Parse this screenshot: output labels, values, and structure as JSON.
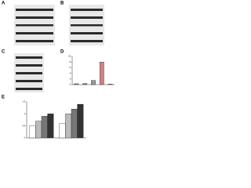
{
  "panel_labels": [
    "A",
    "B",
    "C",
    "D",
    "E"
  ],
  "chart_data": [
    {
      "type": "bar",
      "categories": [
        null,
        null,
        null,
        null,
        null
      ],
      "values": [
        0.3,
        0.4,
        1.5,
        8,
        0.2
      ],
      "colors": [
        "#888888",
        "#888888",
        "#999999",
        "#d08080",
        "#888888"
      ],
      "ylim": [
        0,
        10
      ],
      "yticks": [
        0,
        2,
        4,
        6,
        8,
        10
      ]
    },
    {
      "type": "grouped-bar",
      "categories": [
        null,
        null
      ],
      "ylim": [
        0,
        1.5
      ],
      "yticks": [
        0,
        0.5,
        1,
        1.5
      ],
      "series": [
        {
          "color": "#ffffff",
          "values": [
            0.5,
            0.6
          ]
        },
        {
          "color": "#bbbbbb",
          "values": [
            0.7,
            1.0
          ]
        },
        {
          "color": "#777777",
          "values": [
            0.9,
            1.2
          ]
        },
        {
          "color": "#333333",
          "values": [
            1.0,
            1.4
          ]
        }
      ]
    }
  ]
}
